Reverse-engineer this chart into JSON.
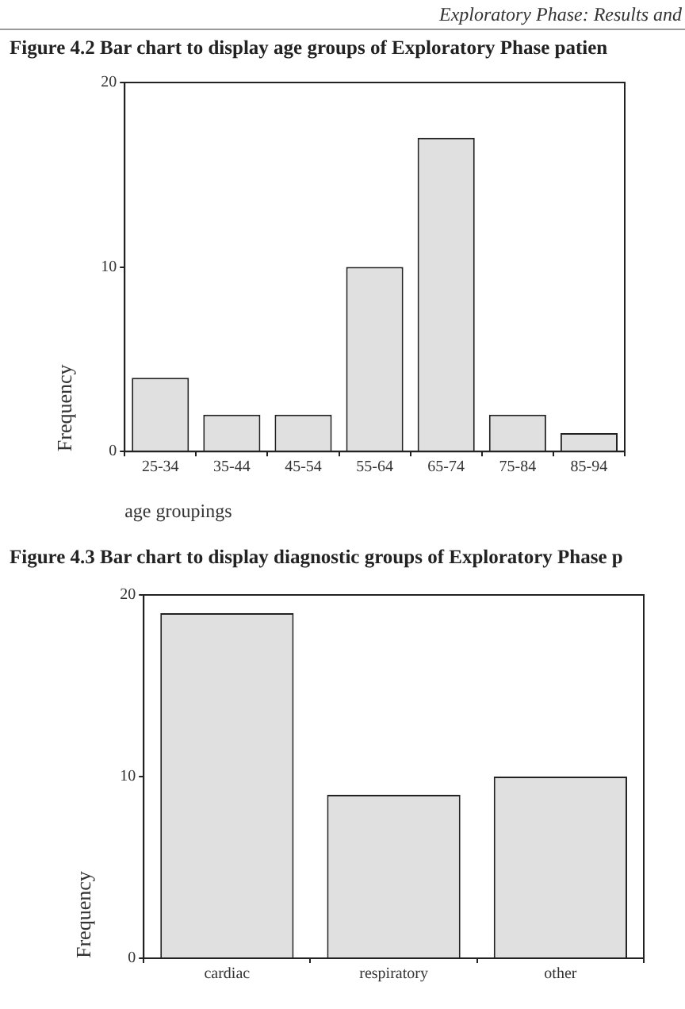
{
  "chart_data": [
    {
      "type": "bar",
      "title": "Figure 4.2      Bar chart to display age groups of Exploratory Phase patien",
      "annotations": [
        "Exploratory Phase: Results and"
      ],
      "xlabel": "age groupings",
      "ylabel": "Frequency",
      "categories": [
        "25-34",
        "35-44",
        "45-54",
        "55-64",
        "65-74",
        "75-84",
        "85-94"
      ],
      "values": [
        4,
        2,
        2,
        10,
        17,
        2,
        1
      ],
      "color": "#e0e0e0",
      "ylim": [
        0,
        20
      ],
      "yticks": [
        0,
        10,
        20
      ],
      "legend": false
    },
    {
      "type": "bar",
      "title": "Figure 4.3      Bar chart to display diagnostic groups  of Exploratory Phase p",
      "ylabel": "Frequency",
      "categories": [
        "cardiac",
        "respiratory",
        "other"
      ],
      "values": [
        19,
        9,
        10
      ],
      "color": "#e0e0e0",
      "ylim": [
        0,
        20
      ],
      "yticks": [
        0,
        10,
        20
      ],
      "legend": false
    }
  ]
}
